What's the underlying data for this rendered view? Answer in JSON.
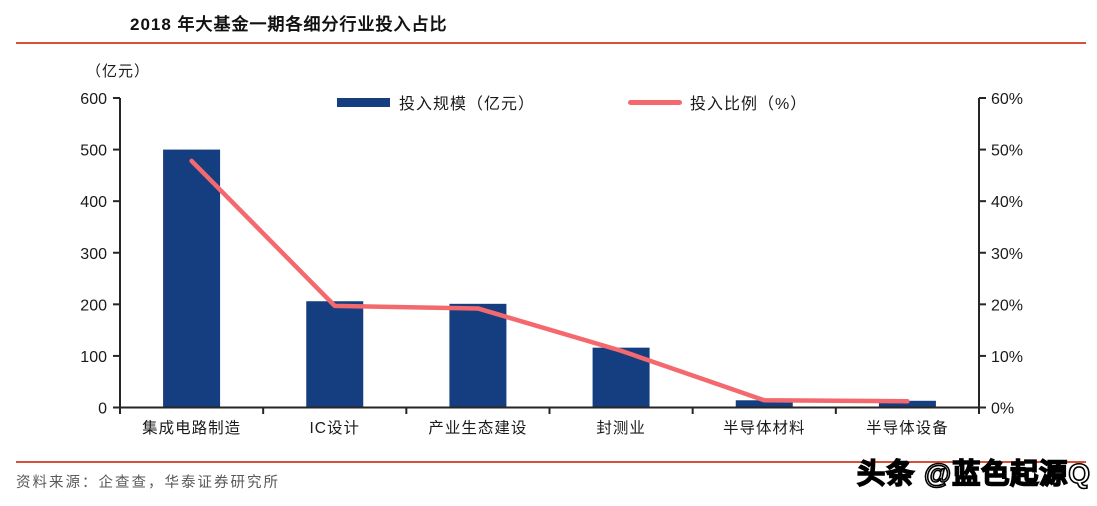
{
  "header": {
    "title": "2018 年大基金一期各细分行业投入占比"
  },
  "legend": {
    "bar_label": "投入规模（亿元）",
    "line_label": "投入比例（%）"
  },
  "chart_data": {
    "type": "bar",
    "title": "2018 年大基金一期各细分行业投入占比",
    "unit_label": "（亿元）",
    "categories": [
      "集成电路制造",
      "IC设计",
      "产业生态建设",
      "封测业",
      "半导体材料",
      "半导体设备"
    ],
    "series": [
      {
        "name": "投入规模（亿元）",
        "type": "bar",
        "axis": "left",
        "values": [
          500,
          206,
          201,
          116,
          14,
          13
        ]
      },
      {
        "name": "投入比例（%）",
        "type": "line",
        "axis": "right",
        "values": [
          47.8,
          19.7,
          19.2,
          11.0,
          1.4,
          1.2
        ]
      }
    ],
    "left_axis": {
      "min": 0,
      "max": 600,
      "ticks": [
        0,
        100,
        200,
        300,
        400,
        500,
        600
      ]
    },
    "right_axis": {
      "min": 0,
      "max": 60,
      "ticks": [
        "0%",
        "10%",
        "20%",
        "30%",
        "40%",
        "50%",
        "60%"
      ]
    },
    "legend_position": "top",
    "grid": false
  },
  "footer": {
    "source": "资料来源：企查查，华泰证券研究所",
    "watermark": "头条 @蓝色起源Q"
  },
  "colors": {
    "bar": "#153e80",
    "line": "#f4696e",
    "rule": "#d85038",
    "axis": "#262626",
    "text": "#1a1a1a",
    "source_text": "#595959"
  }
}
